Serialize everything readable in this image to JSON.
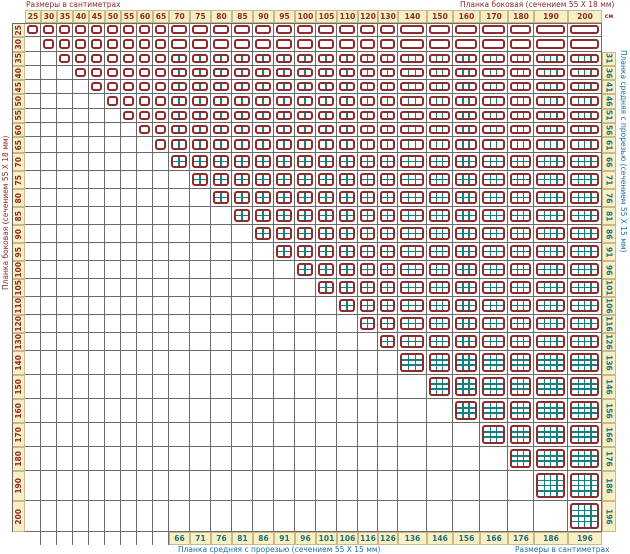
{
  "titles": {
    "top_left": "Размеры в сантиметрах",
    "top_right": "Планка боковая (сечением 55 Х 18 мм)",
    "left_vertical": "Планка боковая (сечением 55 Х 18 мм)",
    "right_vertical": "Планка средняя с прорезью (сечением 55 Х 15 мм)",
    "bottom_left": "Планка средняя с прорезью (сечением 55 Х 15 мм)",
    "bottom_right": "Размеры в сантиметрах",
    "unit": "см"
  },
  "columns": [
    "25",
    "30",
    "35",
    "40",
    "45",
    "50",
    "55",
    "60",
    "65",
    "70",
    "75",
    "80",
    "85",
    "90",
    "95",
    "100",
    "105",
    "110",
    "120",
    "130",
    "140",
    "150",
    "160",
    "170",
    "180",
    "190",
    "200"
  ],
  "rows": [
    "25",
    "30",
    "35",
    "40",
    "45",
    "50",
    "55",
    "60",
    "65",
    "70",
    "75",
    "80",
    "85",
    "90",
    "95",
    "100",
    "105",
    "110",
    "120",
    "130",
    "140",
    "150",
    "160",
    "170",
    "180",
    "190",
    "200"
  ],
  "right_labels": [
    "",
    "",
    "31",
    "36",
    "41",
    "46",
    "51",
    "56",
    "61",
    "66",
    "71",
    "76",
    "81",
    "86",
    "91",
    "96",
    "101",
    "106",
    "116",
    "126",
    "136",
    "146",
    "156",
    "166",
    "176",
    "186",
    "196"
  ],
  "bottom_labels": [
    "",
    "",
    "",
    "",
    "",
    "",
    "",
    "",
    "",
    "66",
    "71",
    "76",
    "81",
    "86",
    "91",
    "96",
    "101",
    "106",
    "116",
    "126",
    "136",
    "146",
    "156",
    "166",
    "176",
    "186",
    "196"
  ],
  "rules": {
    "cell_shown_when": "column >= row",
    "rows_without_bars": [
      25,
      30
    ],
    "vertical_bars_by_column": [
      [
        25,
        0
      ],
      [
        70,
        1
      ],
      [
        140,
        2
      ],
      [
        190,
        3
      ]
    ],
    "horizontal_bars_by_row": [
      [
        25,
        0
      ],
      [
        70,
        1
      ],
      [
        140,
        2
      ],
      [
        190,
        3
      ]
    ]
  },
  "colors": {
    "frame": "#8e2b2b",
    "middle_bar": "#177d7f",
    "label_background": "#f8efc4",
    "grid": "#6a6a6a"
  }
}
